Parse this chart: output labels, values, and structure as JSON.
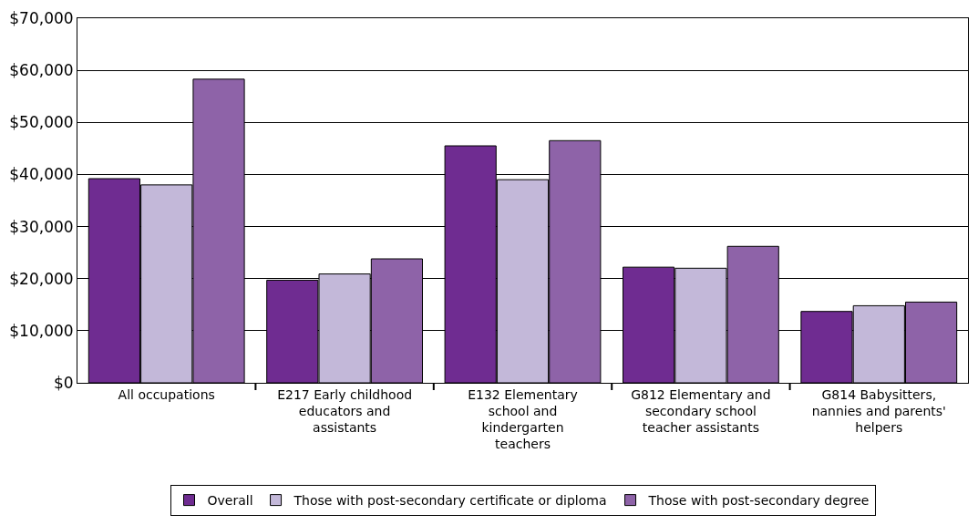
{
  "chart_data": {
    "type": "bar",
    "categories": [
      "All occupations",
      "E217 Early childhood educators and assistants",
      "E132 Elementary school and kindergarten teachers",
      "G812 Elementary and secondary school teacher assistants",
      "G814 Babysitters, nannies and parents' helpers"
    ],
    "series": [
      {
        "name": "Overall",
        "color": "#6f2c91",
        "values": [
          39200,
          19700,
          45500,
          22200,
          13700
        ]
      },
      {
        "name": "Those with post-secondary certificate or diploma",
        "color": "#c3b8d9",
        "values": [
          38000,
          20900,
          39000,
          22000,
          14800
        ]
      },
      {
        "name": "Those with post-secondary degree",
        "color": "#8e63a8",
        "values": [
          58300,
          23800,
          46500,
          26200,
          15500
        ]
      }
    ],
    "ylim": [
      0,
      70000
    ],
    "yticks": [
      {
        "value": 0,
        "label": "$0"
      },
      {
        "value": 10000,
        "label": "$10,000"
      },
      {
        "value": 20000,
        "label": "$20,000"
      },
      {
        "value": 30000,
        "label": "$30,000"
      },
      {
        "value": 40000,
        "label": "$40,000"
      },
      {
        "value": 50000,
        "label": "$50,000"
      },
      {
        "value": 60000,
        "label": "$60,000"
      },
      {
        "value": 70000,
        "label": "$70,000"
      }
    ],
    "grid": "y",
    "legend": "bottom"
  }
}
